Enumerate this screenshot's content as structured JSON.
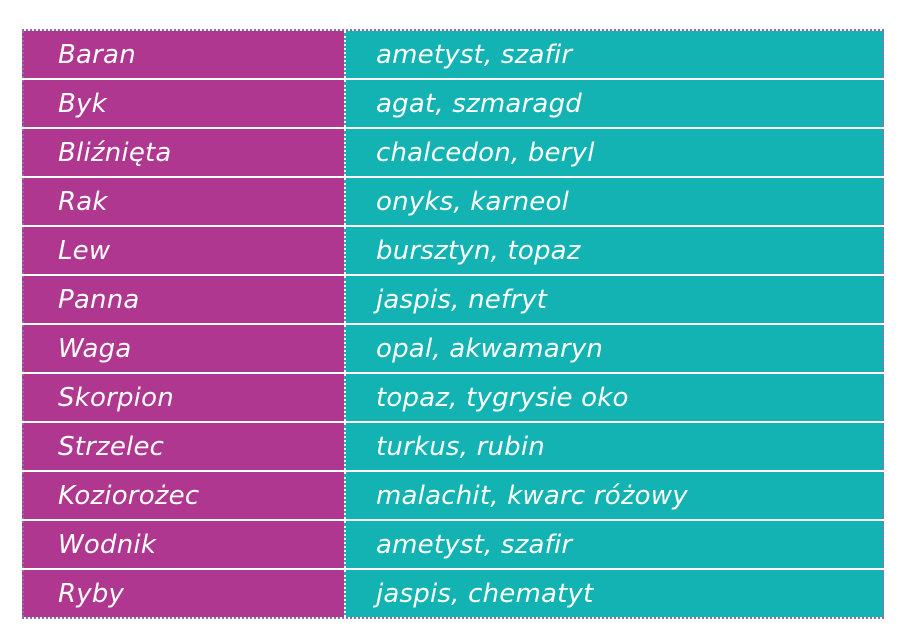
{
  "colors": {
    "sign_column": "#b0378f",
    "gem_column": "#14b3b3",
    "text": "#ffffff"
  },
  "rows": [
    {
      "sign": "Baran",
      "gems": "ametyst, szafir"
    },
    {
      "sign": "Byk",
      "gems": "agat, szmaragd"
    },
    {
      "sign": "Bliźnięta",
      "gems": "chalcedon, beryl"
    },
    {
      "sign": "Rak",
      "gems": "onyks, karneol"
    },
    {
      "sign": "Lew",
      "gems": "bursztyn, topaz"
    },
    {
      "sign": "Panna",
      "gems": "jaspis, nefryt"
    },
    {
      "sign": "Waga",
      "gems": "opal, akwamaryn"
    },
    {
      "sign": "Skorpion",
      "gems": "topaz, tygrysie oko"
    },
    {
      "sign": "Strzelec",
      "gems": "turkus, rubin"
    },
    {
      "sign": "Koziorożec",
      "gems": "malachit, kwarc różowy"
    },
    {
      "sign": "Wodnik",
      "gems": "ametyst, szafir"
    },
    {
      "sign": "Ryby",
      "gems": "jaspis, chematyt"
    }
  ]
}
